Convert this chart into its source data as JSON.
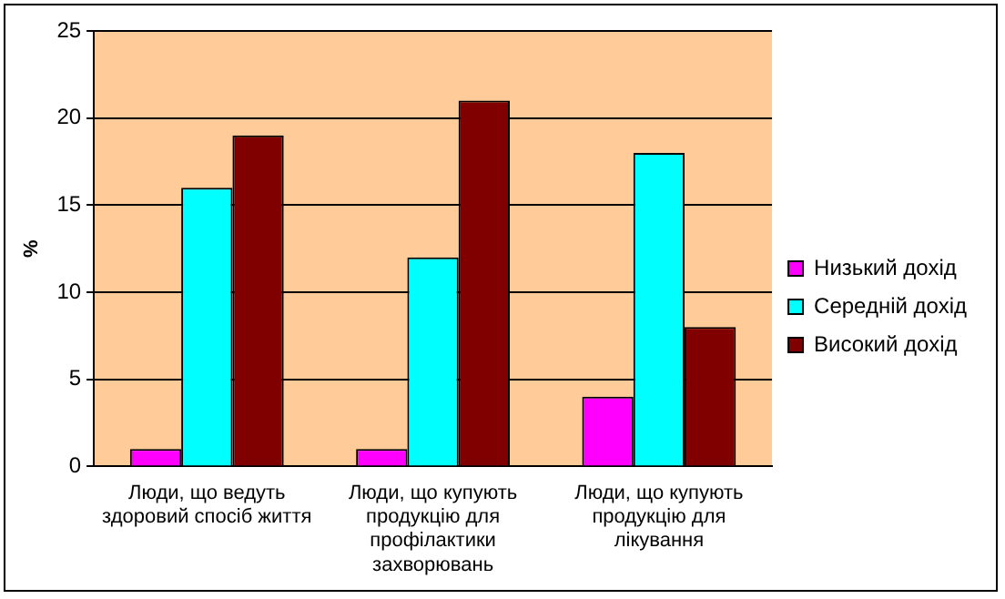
{
  "chart_data": {
    "type": "bar",
    "ylabel": "%",
    "categories": [
      "Люди, що ведуть здоровий спосіб життя",
      "Люди, що купують продукцію для профілактики захворювань",
      "Люди, що купують продукцію для лікування"
    ],
    "series": [
      {
        "name": "Низький дохід",
        "color": "#ff00ff",
        "values": [
          1,
          1,
          4
        ]
      },
      {
        "name": "Середній дохід",
        "color": "#00ffff",
        "values": [
          16,
          12,
          18
        ]
      },
      {
        "name": "Високий дохід",
        "color": "#800000",
        "values": [
          19,
          21,
          8
        ]
      }
    ],
    "ylim": [
      0,
      25
    ],
    "yticks": [
      0,
      5,
      10,
      15,
      20,
      25
    ],
    "grid": "y",
    "legend": "right"
  }
}
